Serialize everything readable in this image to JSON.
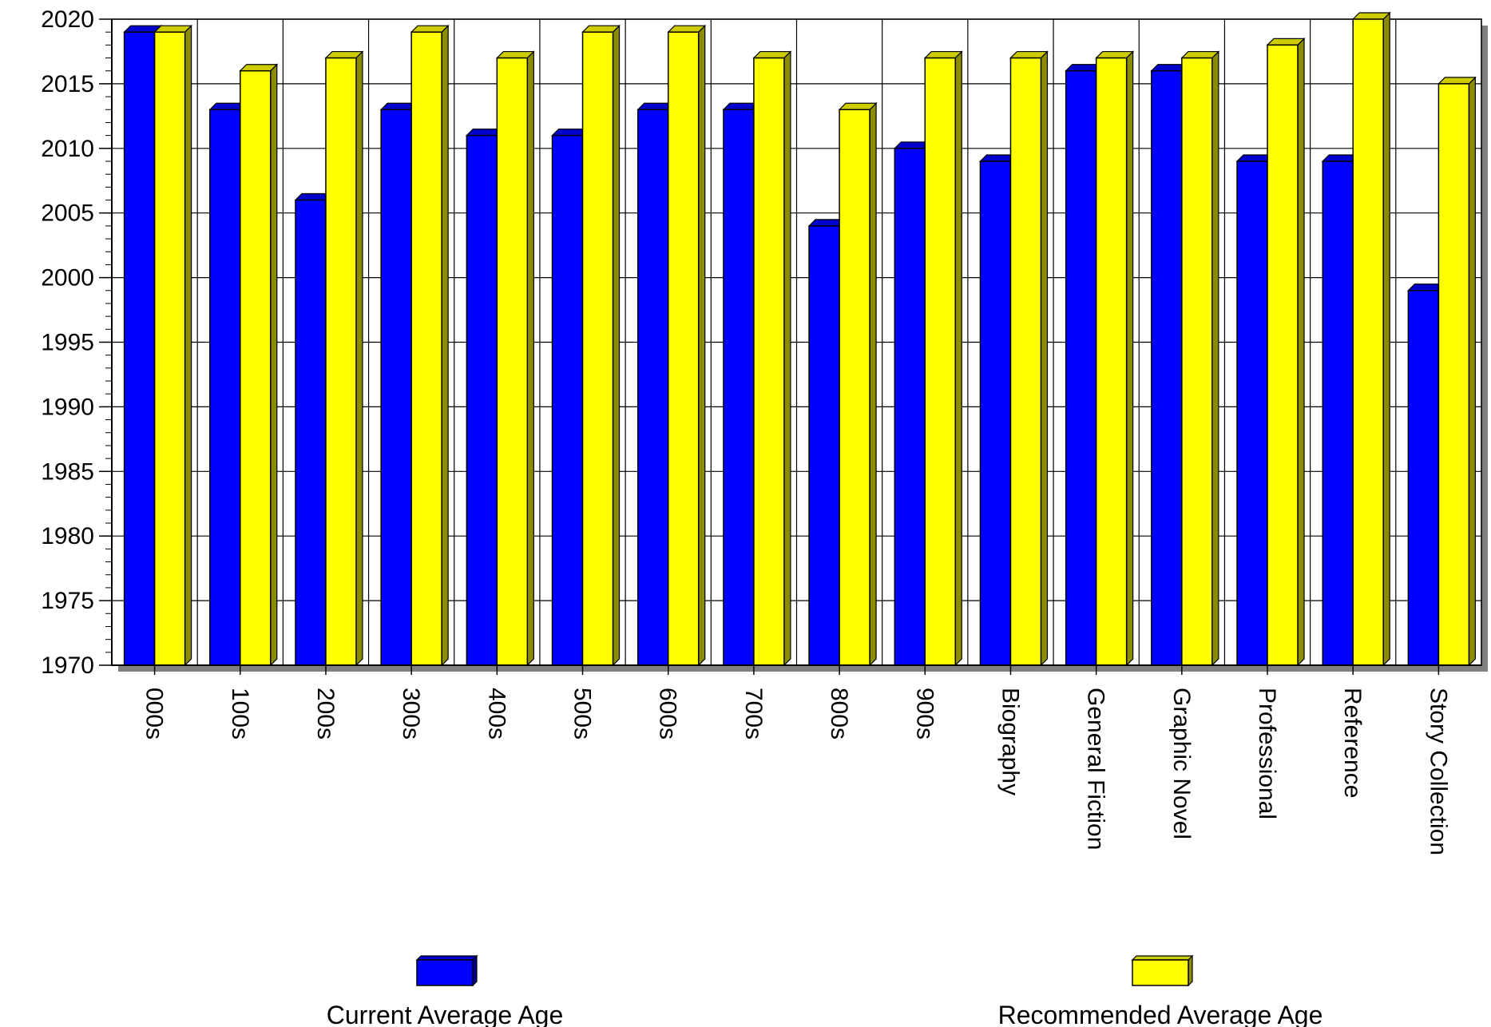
{
  "chart_data": {
    "type": "bar",
    "categories": [
      "000s",
      "100s",
      "200s",
      "300s",
      "400s",
      "500s",
      "600s",
      "700s",
      "800s",
      "900s",
      "Biography",
      "General Fiction",
      "Graphic Novel",
      "Professional",
      "Reference",
      "Story Collection"
    ],
    "series": [
      {
        "name": "Current Average Age",
        "color": "#0000ff",
        "values": [
          2019,
          2013,
          2006,
          2013,
          2011,
          2011,
          2013,
          2013,
          2004,
          2010,
          2009,
          2016,
          2016,
          2009,
          2009,
          1999
        ]
      },
      {
        "name": "Recommended Average Age",
        "color": "#ffff00",
        "values": [
          2019,
          2016,
          2017,
          2019,
          2017,
          2019,
          2019,
          2017,
          2013,
          2017,
          2017,
          2017,
          2017,
          2018,
          2020,
          2015
        ]
      }
    ],
    "ylim": [
      1970,
      2020
    ],
    "y_ticks": [
      "1970",
      "1975",
      "1980",
      "1985",
      "1990",
      "1995",
      "2000",
      "2005",
      "2010",
      "2015",
      "2020"
    ],
    "grid": true,
    "legend_placement": "bottom",
    "bar_style": "3d"
  }
}
